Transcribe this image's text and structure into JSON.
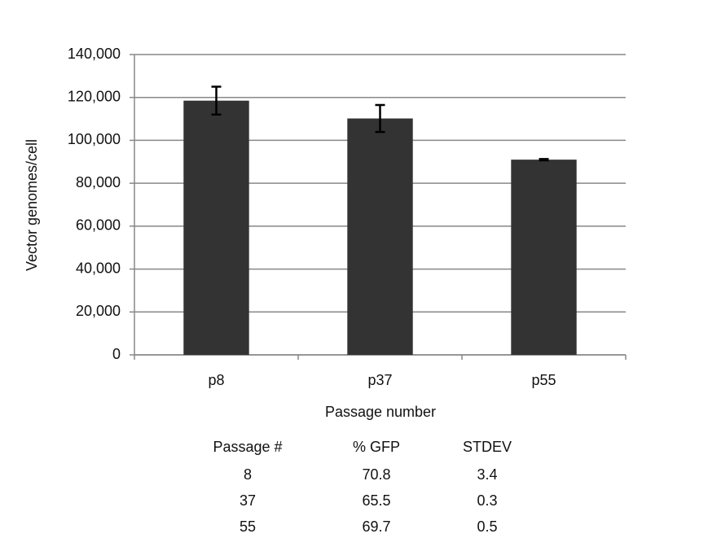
{
  "chart_data": {
    "type": "bar",
    "x_label": "Passage number",
    "y_label": "Vector genomes/cell",
    "categories": [
      "p8",
      "p37",
      "p55"
    ],
    "series": [
      {
        "values": [
          118500,
          110200,
          91000
        ],
        "errors": [
          6500,
          6300,
          300
        ],
        "color": "#333333"
      }
    ],
    "ylim": [
      0,
      140000
    ],
    "yticks": [
      0,
      {
        "value": 20000,
        "label": "20,000"
      },
      {
        "value": 40000,
        "label": "40,000"
      },
      {
        "value": 60000,
        "label": "60,000"
      },
      {
        "value": 80000,
        "label": "80,000"
      },
      {
        "value": 100000,
        "label": "100,000"
      },
      {
        "value": 120000,
        "label": "120,000"
      },
      {
        "value": 140000,
        "label": "140,000"
      }
    ],
    "grid": true
  },
  "table": {
    "header": [
      "Passage #",
      "% GFP",
      "STDEV"
    ],
    "rows": [
      [
        8,
        70.8,
        3.4
      ],
      [
        37,
        65.5,
        0.3
      ],
      [
        55,
        69.7,
        0.5
      ]
    ]
  }
}
